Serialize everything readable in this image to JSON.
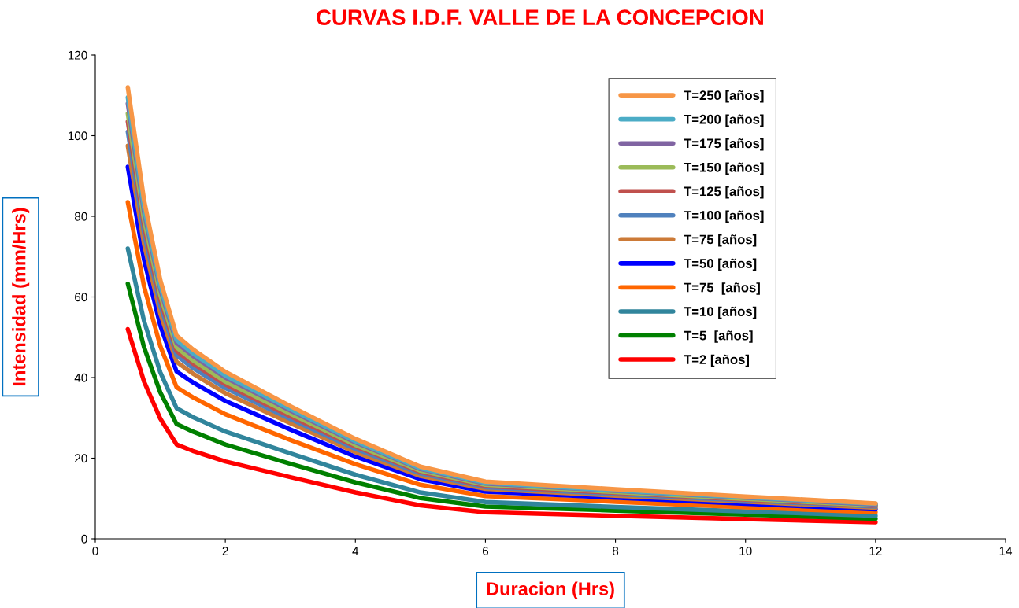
{
  "chart_data": {
    "type": "line",
    "title": "CURVAS I.D.F. VALLE DE LA CONCEPCION",
    "xlabel": "Duracion (Hrs)",
    "ylabel": "Intensidad (mm/Hrs)",
    "x": [
      0.5,
      0.75,
      1,
      1.25,
      1.5,
      2,
      3,
      4,
      5,
      6,
      8,
      10,
      12
    ],
    "xlim": [
      0,
      14
    ],
    "xticks": [
      0,
      2,
      4,
      6,
      8,
      10,
      12,
      14
    ],
    "ylim": [
      0,
      120
    ],
    "yticks": [
      0,
      20,
      40,
      60,
      80,
      100,
      120
    ],
    "grid": false,
    "legend": "top right",
    "marker": "none",
    "line_style": "solid",
    "series": [
      {
        "name": "T=250 [años]",
        "color": "#f79646",
        "values": [
          112,
          84,
          64.2,
          50.4,
          47.0,
          41.4,
          32.9,
          24.8,
          17.9,
          14.2,
          12.3,
          10.5,
          8.8
        ]
      },
      {
        "name": "T=200 [años]",
        "color": "#4bacc6",
        "values": [
          109.5,
          82.1,
          62.7,
          49.3,
          46.0,
          40.5,
          32.2,
          24.2,
          17.5,
          13.9,
          12.0,
          10.3,
          8.7
        ]
      },
      {
        "name": "T=175 [años]",
        "color": "#8064a2",
        "values": [
          108,
          81,
          61.9,
          48.6,
          45.4,
          40.0,
          31.8,
          23.9,
          17.3,
          13.7,
          11.9,
          10.2,
          8.5
        ]
      },
      {
        "name": "T=150 [años]",
        "color": "#9bbb59",
        "values": [
          105.5,
          79.1,
          60.5,
          47.5,
          44.3,
          39.0,
          31.0,
          23.3,
          16.9,
          13.4,
          11.6,
          9.9,
          8.3
        ]
      },
      {
        "name": "T=125 [años]",
        "color": "#c0504d",
        "values": [
          103.5,
          77.6,
          59.3,
          46.6,
          43.5,
          38.3,
          30.4,
          22.9,
          16.6,
          13.1,
          11.4,
          9.7,
          8.2
        ]
      },
      {
        "name": "T=100 [años]",
        "color": "#4f81bd",
        "values": [
          101,
          75.8,
          57.9,
          45.5,
          42.4,
          37.4,
          29.7,
          22.3,
          16.2,
          12.8,
          11.1,
          9.5,
          8.0
        ]
      },
      {
        "name": "T=75 [años]",
        "color": "#cc7a37",
        "values": [
          97.5,
          73.1,
          55.9,
          43.9,
          41.0,
          36.1,
          28.7,
          21.5,
          15.6,
          12.4,
          10.7,
          9.2,
          7.7
        ]
      },
      {
        "name": "T=50 [años]",
        "color": "#0000ff",
        "values": [
          92.3,
          69.2,
          52.9,
          41.5,
          38.8,
          34.2,
          27.1,
          20.4,
          14.8,
          11.7,
          10.2,
          8.7,
          7.3
        ]
      },
      {
        "name": "T=75  [años]",
        "color": "#ff6600",
        "values": [
          83.5,
          62.6,
          47.8,
          37.6,
          35.1,
          30.9,
          24.5,
          18.5,
          13.4,
          10.6,
          9.2,
          7.8,
          6.6
        ]
      },
      {
        "name": "T=10 [años]",
        "color": "#31859c",
        "values": [
          72,
          54,
          41.3,
          32.4,
          30.2,
          26.6,
          21.2,
          15.9,
          11.5,
          9.1,
          7.9,
          6.8,
          5.7
        ]
      },
      {
        "name": "T=5  [años]",
        "color": "#008000",
        "values": [
          63.3,
          47.5,
          36.3,
          28.5,
          26.6,
          23.4,
          18.6,
          14.0,
          10.1,
          8.0,
          7.0,
          6.0,
          5.0
        ]
      },
      {
        "name": "T=2 [años]",
        "color": "#ff0000",
        "values": [
          52,
          39,
          29.8,
          23.4,
          21.8,
          19.2,
          15.3,
          11.5,
          8.3,
          6.6,
          5.7,
          4.9,
          4.1
        ]
      }
    ]
  }
}
